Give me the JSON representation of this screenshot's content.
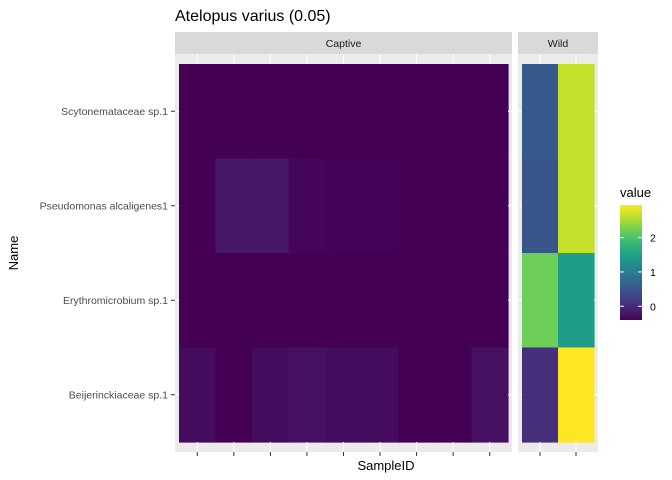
{
  "chart_data": {
    "type": "heatmap",
    "title": "Atelopus varius (0.05)",
    "xlabel": "SampleID",
    "ylabel": "Name",
    "rows": [
      "Scytonemataceae sp.1",
      "Pseudomonas alcaligenes1",
      "Erythromicrobium sp.1",
      "Beijerinckiaceae sp.1"
    ],
    "facets": [
      {
        "name": "Captive",
        "n_columns": 9,
        "values": [
          [
            -0.4,
            -0.4,
            -0.4,
            -0.4,
            -0.4,
            -0.4,
            -0.4,
            -0.4,
            -0.4
          ],
          [
            -0.4,
            -0.2,
            -0.2,
            -0.35,
            -0.38,
            -0.38,
            -0.4,
            -0.4,
            -0.4
          ],
          [
            -0.4,
            -0.4,
            -0.4,
            -0.4,
            -0.4,
            -0.4,
            -0.4,
            -0.4,
            -0.4
          ],
          [
            -0.3,
            -0.4,
            -0.3,
            -0.25,
            -0.3,
            -0.3,
            -0.4,
            -0.4,
            -0.25
          ]
        ]
      },
      {
        "name": "Wild",
        "n_columns": 2,
        "values": [
          [
            0.55,
            2.65
          ],
          [
            0.5,
            2.65
          ],
          [
            2.2,
            1.45
          ],
          [
            0.05,
            2.95
          ]
        ]
      }
    ],
    "legend": {
      "title": "value",
      "breaks": [
        0,
        1,
        2
      ],
      "range": [
        -0.4,
        2.95
      ],
      "colormap": "viridis"
    }
  },
  "colors": {
    "panel_background": "#ebebeb",
    "strip_background": "#d9d9d9",
    "grid": "#ffffff"
  }
}
